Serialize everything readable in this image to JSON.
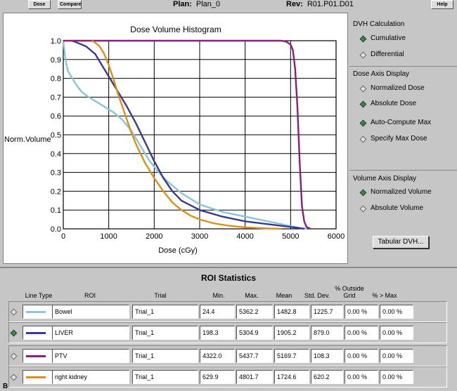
{
  "toolbar": {
    "dose_label": "Dose",
    "compare_label": "Compare",
    "help_label": "Help",
    "plan_label": "Plan:",
    "plan_value": "Plan_0",
    "rev_label": "Rev:",
    "rev_value": "R01.P01.D01"
  },
  "chart_data": {
    "type": "line",
    "title": "Dose Volume Histogram",
    "xlabel": "Dose (cGy)",
    "ylabel": "Norm.Volume",
    "xlim": [
      0,
      6000
    ],
    "ylim": [
      0,
      1.0
    ],
    "xticks": [
      0,
      1000,
      2000,
      3000,
      4000,
      5000,
      6000
    ],
    "yticks": [
      0.0,
      0.1,
      0.2,
      0.3,
      0.4,
      0.5,
      0.6,
      0.7,
      0.8,
      0.9,
      1.0
    ],
    "grid": true,
    "series": [
      {
        "name": "Bowel",
        "color": "#8cc4d8",
        "x": [
          0,
          50,
          100,
          200,
          300,
          400,
          500,
          700,
          900,
          1100,
          1300,
          1500,
          1700,
          1900,
          2100,
          2300,
          2600,
          3000,
          3500,
          4000,
          4500,
          5000,
          5200,
          5362
        ],
        "y": [
          1.0,
          0.9,
          0.84,
          0.8,
          0.76,
          0.73,
          0.71,
          0.68,
          0.65,
          0.62,
          0.58,
          0.52,
          0.44,
          0.36,
          0.3,
          0.25,
          0.19,
          0.13,
          0.09,
          0.065,
          0.04,
          0.015,
          0.005,
          0.0
        ]
      },
      {
        "name": "LIVER",
        "color": "#3a3a8c",
        "x": [
          200,
          300,
          500,
          700,
          800,
          900,
          1000,
          1100,
          1200,
          1400,
          1600,
          1800,
          2000,
          2200,
          2400,
          2600,
          3000,
          3500,
          4000,
          4500,
          5000,
          5200,
          5305
        ],
        "y": [
          1.0,
          0.99,
          0.97,
          0.93,
          0.89,
          0.85,
          0.81,
          0.77,
          0.73,
          0.65,
          0.56,
          0.46,
          0.36,
          0.27,
          0.2,
          0.15,
          0.1,
          0.065,
          0.04,
          0.025,
          0.01,
          0.004,
          0.0
        ]
      },
      {
        "name": "PTV",
        "color": "#8a1e7a",
        "x": [
          0,
          4300,
          4800,
          4900,
          5000,
          5050,
          5100,
          5150,
          5200,
          5250,
          5300,
          5350,
          5438
        ],
        "y": [
          1.0,
          1.0,
          1.0,
          0.995,
          0.98,
          0.95,
          0.85,
          0.65,
          0.35,
          0.12,
          0.04,
          0.01,
          0.0
        ]
      },
      {
        "name": "right kidney",
        "color": "#d9901a",
        "x": [
          630,
          700,
          800,
          900,
          1000,
          1100,
          1200,
          1300,
          1400,
          1500,
          1600,
          1700,
          1800,
          1900,
          2000,
          2200,
          2400,
          2600,
          2800,
          3000,
          3300,
          3600,
          4000,
          4400,
          4802
        ],
        "y": [
          1.0,
          0.99,
          0.97,
          0.93,
          0.87,
          0.8,
          0.72,
          0.65,
          0.58,
          0.51,
          0.45,
          0.4,
          0.35,
          0.31,
          0.27,
          0.2,
          0.14,
          0.1,
          0.07,
          0.05,
          0.03,
          0.018,
          0.008,
          0.003,
          0.0
        ]
      }
    ]
  },
  "side": {
    "dvh_calc_title": "DVH Calculation",
    "cumulative": "Cumulative",
    "differential": "Differential",
    "dose_axis_title": "Dose Axis Display",
    "normalized_dose": "Normalized Dose",
    "absolute_dose": "Absolute Dose",
    "auto_compute_max": "Auto-Compute Max",
    "specify_max_dose": "Specify Max Dose",
    "volume_axis_title": "Volume Axis Display",
    "normalized_volume": "Normalized Volume",
    "absolute_volume": "Absolute Volume",
    "tabular_dvh": "Tabular DVH..."
  },
  "roi": {
    "title": "ROI Statistics",
    "headers": {
      "line_type": "Line Type",
      "roi": "ROI",
      "trial": "Trial",
      "min": "Min.",
      "max": "Max.",
      "mean": "Mean",
      "std": "Std. Dev.",
      "outside": "% Outside Grid",
      "gt_max": "% > Max"
    },
    "rows": [
      {
        "roi": "Bowel",
        "trial": "Trial_1",
        "min": "24.4",
        "max": "5362.2",
        "mean": "1482.8",
        "std": "1225.7",
        "outside": "0.00 %",
        "gt_max": "0.00 %",
        "color": "#8cc4d8",
        "selected": false
      },
      {
        "roi": "LIVER",
        "trial": "Trial_1",
        "min": "198.3",
        "max": "5304.9",
        "mean": "1905.2",
        "std": "879.0",
        "outside": "0.00 %",
        "gt_max": "0.00 %",
        "color": "#3a3a8c",
        "selected": true
      },
      {
        "roi": "PTV",
        "trial": "Trial_1",
        "min": "4322.0",
        "max": "5437.7",
        "mean": "5169.7",
        "std": "108.3",
        "outside": "0.00 %",
        "gt_max": "0.00 %",
        "color": "#8a1e7a",
        "selected": false
      },
      {
        "roi": "right kidney",
        "trial": "Trial_1",
        "min": "629.9",
        "max": "4801.7",
        "mean": "1724.6",
        "std": "620.2",
        "outside": "0.00 %",
        "gt_max": "0.00 %",
        "color": "#d9901a",
        "selected": false
      }
    ]
  },
  "corner_label": "B"
}
